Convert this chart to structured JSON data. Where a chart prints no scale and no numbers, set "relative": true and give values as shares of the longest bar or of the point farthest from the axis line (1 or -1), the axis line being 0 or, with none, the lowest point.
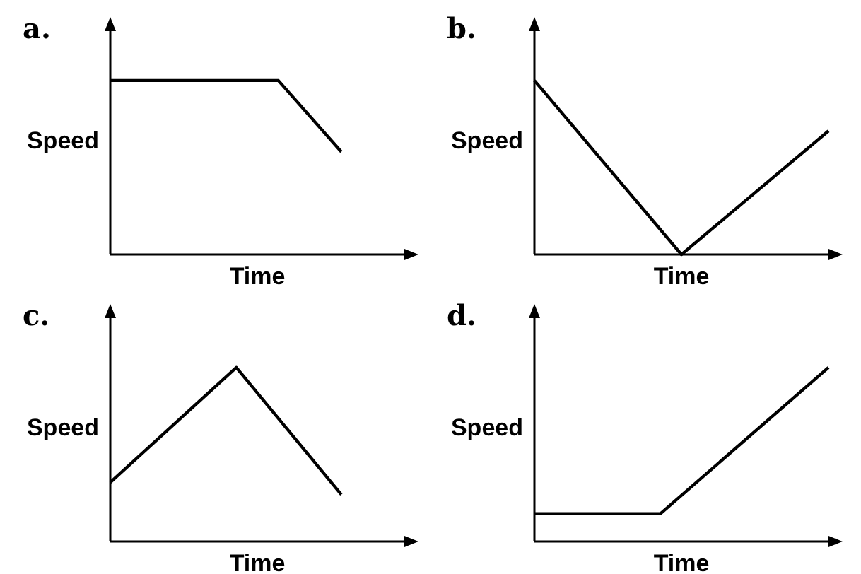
{
  "chart_data": [
    {
      "type": "line",
      "title": "a.",
      "xlabel": "Time",
      "ylabel": "Speed",
      "relative": true,
      "categories": [
        null,
        null,
        null,
        null,
        null,
        null,
        null,
        null,
        null,
        null,
        null,
        null,
        null,
        null,
        null
      ],
      "series": [
        {
          "color": "#000000",
          "values": [
            1,
            null,
            null,
            null,
            null,
            null,
            null,
            null,
            1,
            null,
            null,
            0.59,
            null,
            null,
            null
          ]
        }
      ]
    },
    {
      "type": "line",
      "title": "b.",
      "xlabel": "Time",
      "ylabel": "Speed",
      "relative": true,
      "categories": [
        null,
        null,
        null,
        null,
        null,
        null,
        null,
        null,
        null,
        null,
        null,
        null,
        null,
        null,
        null
      ],
      "series": [
        {
          "color": "#000000",
          "values": [
            1,
            null,
            null,
            null,
            null,
            null,
            null,
            0,
            null,
            null,
            null,
            null,
            null,
            null,
            0.71
          ]
        }
      ]
    },
    {
      "type": "line",
      "title": "c.",
      "xlabel": "Time",
      "ylabel": "Speed",
      "relative": true,
      "categories": [
        null,
        null,
        null,
        null,
        null,
        null,
        null,
        null,
        null,
        null,
        null,
        null,
        null,
        null,
        null
      ],
      "series": [
        {
          "color": "#000000",
          "values": [
            0.34,
            null,
            null,
            null,
            null,
            null,
            1,
            null,
            null,
            null,
            null,
            0.27,
            null,
            null,
            null
          ]
        }
      ]
    },
    {
      "type": "line",
      "title": "d.",
      "xlabel": "Time",
      "ylabel": "Speed",
      "relative": true,
      "categories": [
        null,
        null,
        null,
        null,
        null,
        null,
        null,
        null,
        null,
        null,
        null,
        null,
        null,
        null,
        null
      ],
      "series": [
        {
          "color": "#000000",
          "values": [
            0.16,
            null,
            null,
            null,
            null,
            null,
            0.16,
            null,
            null,
            null,
            null,
            null,
            null,
            null,
            1
          ]
        }
      ]
    }
  ]
}
